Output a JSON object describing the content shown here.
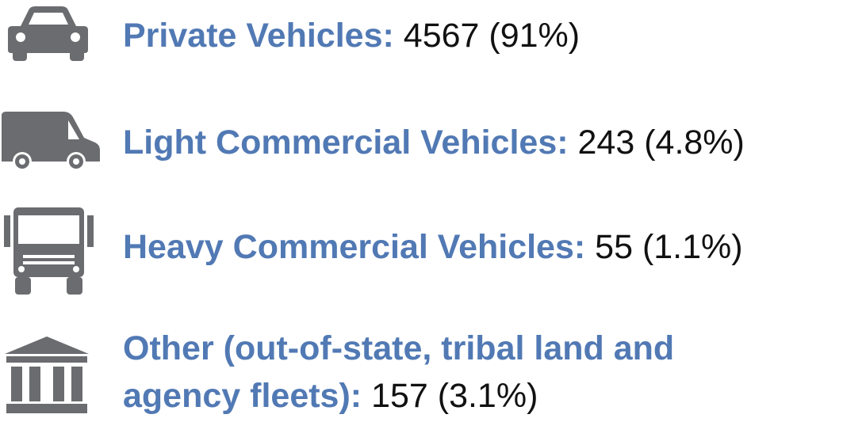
{
  "items": [
    {
      "label": "Private Vehicles:",
      "value": "4567 (91%)"
    },
    {
      "label": "Light Commercial Vehicles:",
      "value": "243 (4.8%)"
    },
    {
      "label": "Heavy Commercial Vehicles:",
      "value": "55 (1.1%)"
    },
    {
      "label": [
        "Other (out-of-state, tribal land and",
        "agency fleets):"
      ],
      "value": "157 (3.1%)"
    }
  ]
}
